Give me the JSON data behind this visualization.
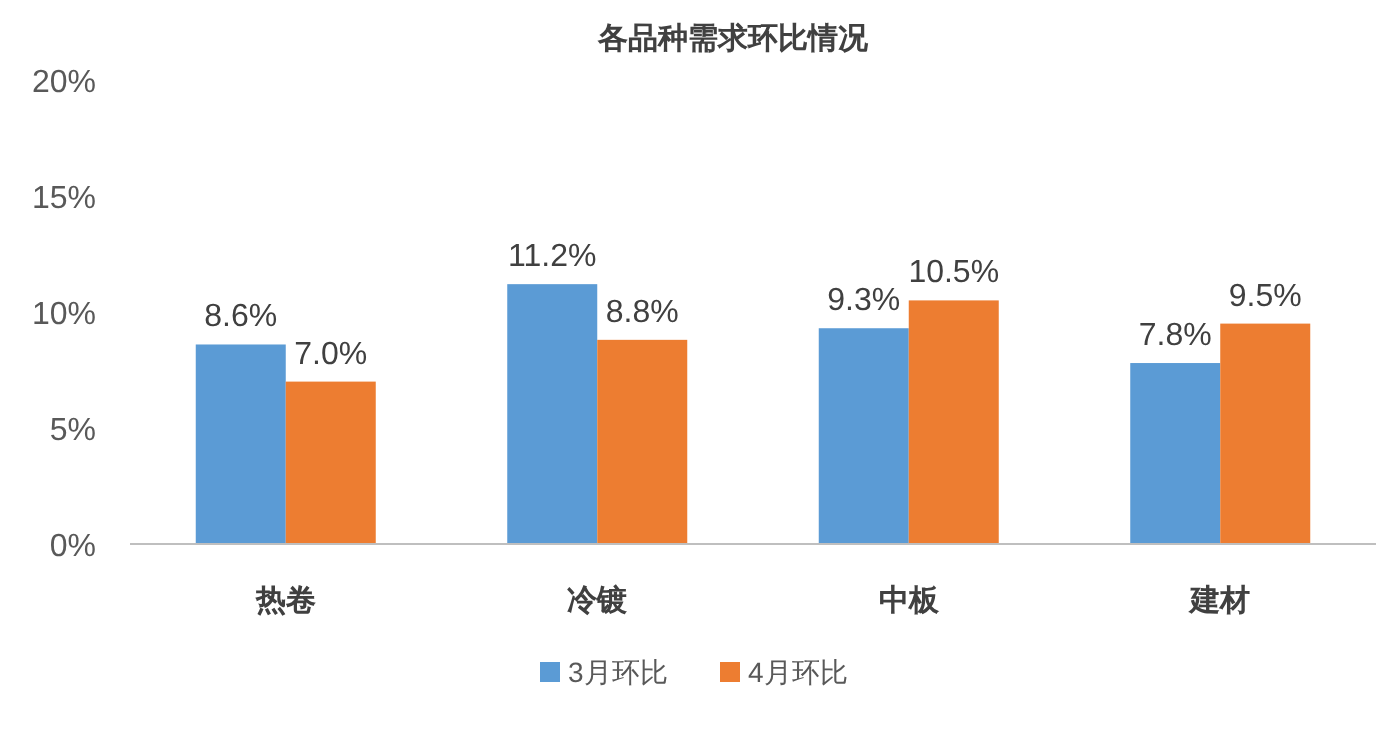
{
  "chart_data": {
    "type": "bar",
    "title": "各品种需求环比情况",
    "categories": [
      "热卷",
      "冷镀",
      "中板",
      "建材"
    ],
    "series": [
      {
        "name": "3月环比",
        "color": "#5b9bd5",
        "values": [
          8.6,
          11.2,
          9.3,
          7.8
        ],
        "value_labels": [
          "8.6%",
          "11.2%",
          "9.3%",
          "7.8%"
        ]
      },
      {
        "name": "4月环比",
        "color": "#ed7d31",
        "values": [
          7.0,
          8.8,
          10.5,
          9.5
        ],
        "value_labels": [
          "7.0%",
          "8.8%",
          "10.5%",
          "9.5%"
        ]
      }
    ],
    "ylim": [
      0,
      20
    ],
    "yticks": [
      {
        "value": 0,
        "label": "0%"
      },
      {
        "value": 5,
        "label": "5%"
      },
      {
        "value": 10,
        "label": "10%"
      },
      {
        "value": 15,
        "label": "15%"
      },
      {
        "value": 20,
        "label": "20%"
      }
    ],
    "legend": "bottom"
  }
}
